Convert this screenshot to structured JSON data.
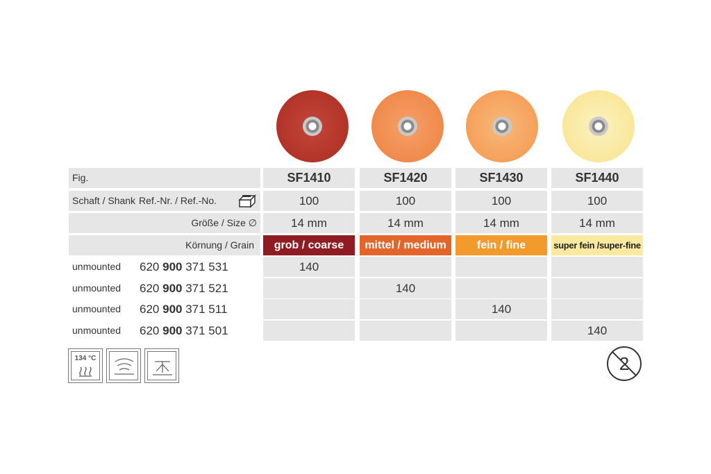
{
  "products": [
    {
      "code": "SF1410",
      "shank": "100",
      "size": "14 mm",
      "grain": "grob / coarse",
      "color": "#c0392b",
      "grain_bg": "#8e1c22"
    },
    {
      "code": "SF1420",
      "shank": "100",
      "size": "14 mm",
      "grain": "mittel / medium",
      "color": "#f08a4b",
      "grain_bg": "#e4652a"
    },
    {
      "code": "SF1430",
      "shank": "100",
      "size": "14 mm",
      "grain": "fein / fine",
      "color": "#f5a05a",
      "grain_bg": "#f29a2c"
    },
    {
      "code": "SF1440",
      "shank": "100",
      "size": "14 mm",
      "grain": "super fein /super-fine",
      "color": "#f9e79a",
      "grain_bg": "#fbe9a0"
    }
  ],
  "labels": {
    "fig": "Fig.",
    "shank": "Schaft / Shank",
    "refno": "Ref.-Nr. / Ref.-No.",
    "size": "Größe / Size ∅",
    "grain": "Körnung / Grain"
  },
  "rows": [
    {
      "type": "unmounted",
      "ref_a": "620",
      "ref_b": "900",
      "ref_c": "371 531",
      "values": [
        "140",
        "",
        "",
        ""
      ]
    },
    {
      "type": "unmounted",
      "ref_a": "620",
      "ref_b": "900",
      "ref_c": "371 521",
      "values": [
        "",
        "140",
        "",
        ""
      ]
    },
    {
      "type": "unmounted",
      "ref_a": "620",
      "ref_b": "900",
      "ref_c": "371 511",
      "values": [
        "",
        "",
        "140",
        ""
      ]
    },
    {
      "type": "unmounted",
      "ref_a": "620",
      "ref_b": "900",
      "ref_c": "371 501",
      "values": [
        "",
        "",
        "",
        "140"
      ]
    }
  ],
  "symbols": {
    "sterilize_temp": "134 °C",
    "icons": [
      "steam-sterilize-icon",
      "ultrasonic-clean-icon",
      "disinfect-icon",
      "single-use-icon"
    ]
  }
}
